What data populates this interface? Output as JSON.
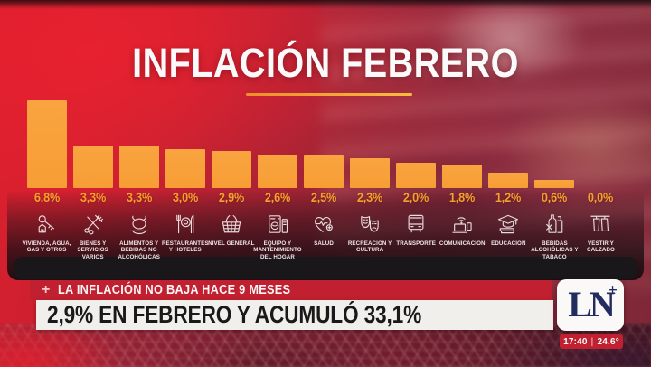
{
  "title": "INFLACIÓN FEBRERO",
  "chart_data": {
    "type": "bar",
    "title": "INFLACIÓN FEBRERO",
    "unit": "%",
    "ylim": [
      0,
      7
    ],
    "grid": false,
    "legend": null,
    "bar_color": "#f9a440",
    "value_label_color": "#f5a02c",
    "categories": [
      "VIVIENDA, AGUA, GAS Y OTROS",
      "BIENES Y SERVICIOS VARIOS",
      "ALIMENTOS Y BEBIDAS NO ALCOHÓLICAS",
      "RESTAURANTES Y HOTELES",
      "NIVEL GENERAL",
      "EQUIPO Y MANTENIMIENTO DEL HOGAR",
      "SALUD",
      "RECREACIÓN Y CULTURA",
      "TRANSPORTE",
      "COMUNICACIÓN",
      "EDUCACIÓN",
      "BEBIDAS ALCOHÓLICAS Y TABACO",
      "VESTIR Y CALZADO"
    ],
    "values": [
      6.8,
      3.3,
      3.3,
      3.0,
      2.9,
      2.6,
      2.5,
      2.3,
      2.0,
      1.8,
      1.2,
      0.6,
      0.0
    ],
    "value_labels": [
      "6,8%",
      "3,3%",
      "3,3%",
      "3,0%",
      "2,9%",
      "2,6%",
      "2,5%",
      "2,3%",
      "2,0%",
      "1,8%",
      "1,2%",
      "0,6%",
      "0,0%"
    ],
    "icons": [
      "key-house-icon",
      "scissors-comb-icon",
      "roast-chicken-icon",
      "cutlery-plate-icon",
      "shopping-basket-icon",
      "washing-machine-icon",
      "heart-pulse-icon",
      "theater-masks-icon",
      "bus-icon",
      "laptop-wifi-icon",
      "graduation-cap-icon",
      "bottles-tobacco-icon",
      "clothes-rack-icon"
    ]
  },
  "ticker": {
    "kicker_plus": "+",
    "kicker": "LA INFLACIÓN NO BAJA HACE 9 MESES",
    "headline": "2,9% EN FEBRERO Y ACUMULÓ 33,1%",
    "strip_red": "#c0202f"
  },
  "channel": {
    "logo_text": "LN",
    "logo_plus": "+",
    "time": "17:40",
    "separator": "|",
    "temperature": "24.6°",
    "logo_navy": "#232c5e"
  }
}
